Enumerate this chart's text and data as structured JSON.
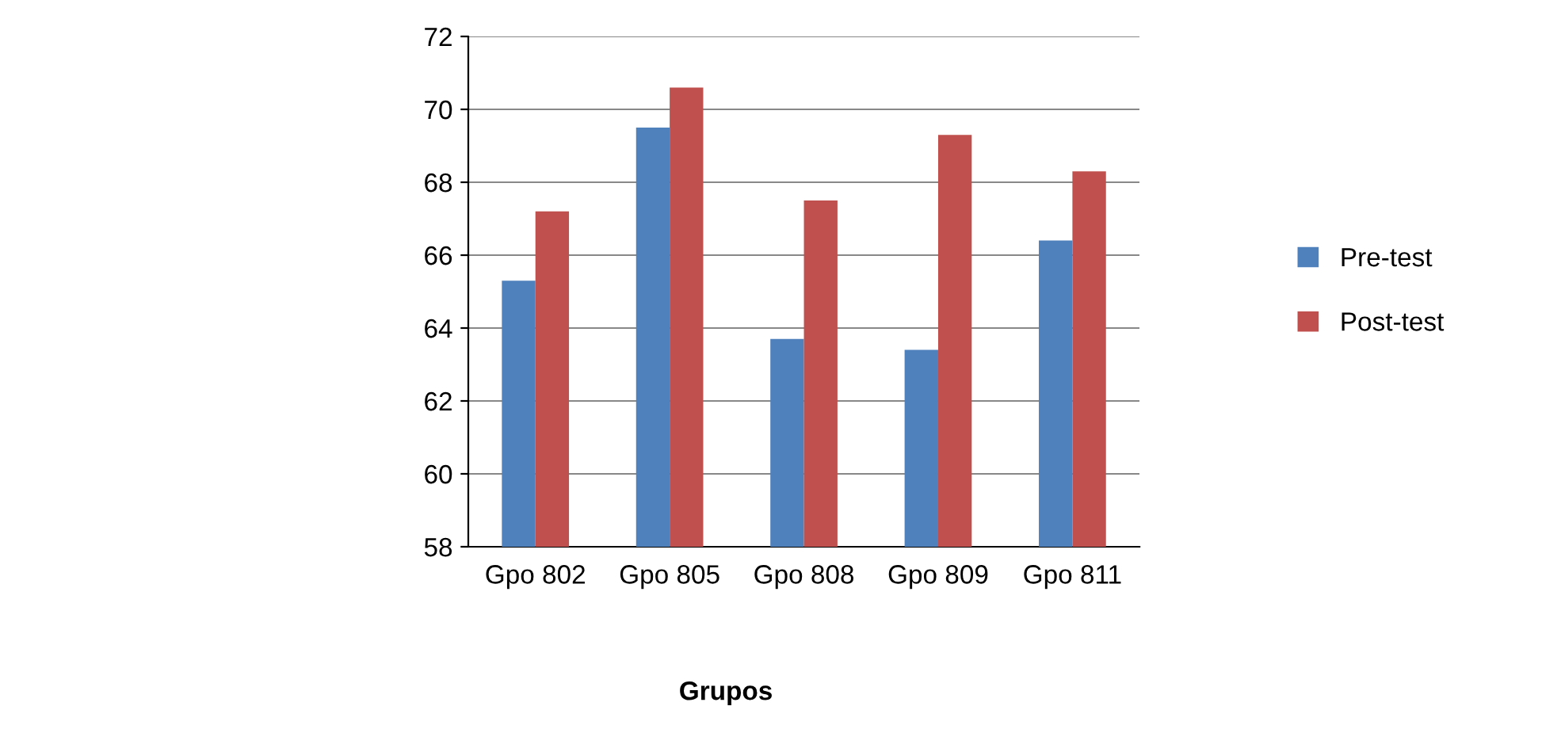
{
  "chart_data": {
    "type": "bar",
    "xlabel": "Grupos",
    "categories": [
      "Gpo 802",
      "Gpo 805",
      "Gpo 808",
      "Gpo 809",
      "Gpo 811"
    ],
    "series": [
      {
        "name": "Pre-test",
        "color": "#4f81bd",
        "values": [
          65.3,
          69.5,
          63.7,
          63.4,
          66.4
        ]
      },
      {
        "name": "Post-test",
        "color": "#c0504d",
        "values": [
          67.2,
          70.6,
          67.5,
          69.3,
          68.3
        ]
      }
    ],
    "ylim": [
      58,
      72
    ],
    "yticks": [
      58,
      60,
      62,
      64,
      66,
      68,
      70,
      72
    ],
    "grid": "y",
    "legend": "right"
  }
}
